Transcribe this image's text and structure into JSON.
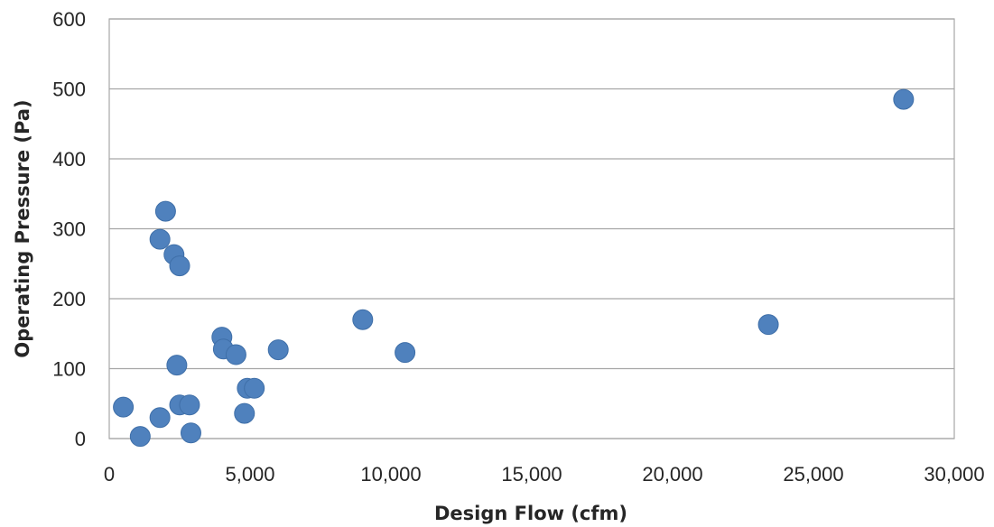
{
  "chart_data": {
    "type": "scatter",
    "title": "",
    "xlabel": "Design Flow (cfm)",
    "ylabel": "Operating Pressure (Pa)",
    "xlim": [
      0,
      30000
    ],
    "ylim": [
      0,
      600
    ],
    "x_ticks": [
      "0",
      "5,000",
      "10,000",
      "15,000",
      "20,000",
      "25,000",
      "30,000"
    ],
    "y_ticks": [
      "0",
      "100",
      "200",
      "300",
      "400",
      "500",
      "600"
    ],
    "grid": "horizontal",
    "legend": "none",
    "colors": {
      "marker": "#4f81bd",
      "grid": "#a6a6a6",
      "plot_border": "#a6a6a6"
    },
    "points": [
      {
        "x": 500,
        "y": 45
      },
      {
        "x": 1100,
        "y": 3
      },
      {
        "x": 1800,
        "y": 30
      },
      {
        "x": 1800,
        "y": 285
      },
      {
        "x": 2000,
        "y": 325
      },
      {
        "x": 2300,
        "y": 263
      },
      {
        "x": 2500,
        "y": 247
      },
      {
        "x": 2400,
        "y": 105
      },
      {
        "x": 2500,
        "y": 48
      },
      {
        "x": 2850,
        "y": 48
      },
      {
        "x": 2900,
        "y": 8
      },
      {
        "x": 4000,
        "y": 145
      },
      {
        "x": 4050,
        "y": 128
      },
      {
        "x": 4500,
        "y": 120
      },
      {
        "x": 4800,
        "y": 36
      },
      {
        "x": 4900,
        "y": 72
      },
      {
        "x": 5150,
        "y": 72
      },
      {
        "x": 6000,
        "y": 127
      },
      {
        "x": 9000,
        "y": 170
      },
      {
        "x": 10500,
        "y": 123
      },
      {
        "x": 23400,
        "y": 163
      },
      {
        "x": 28200,
        "y": 485
      }
    ]
  }
}
